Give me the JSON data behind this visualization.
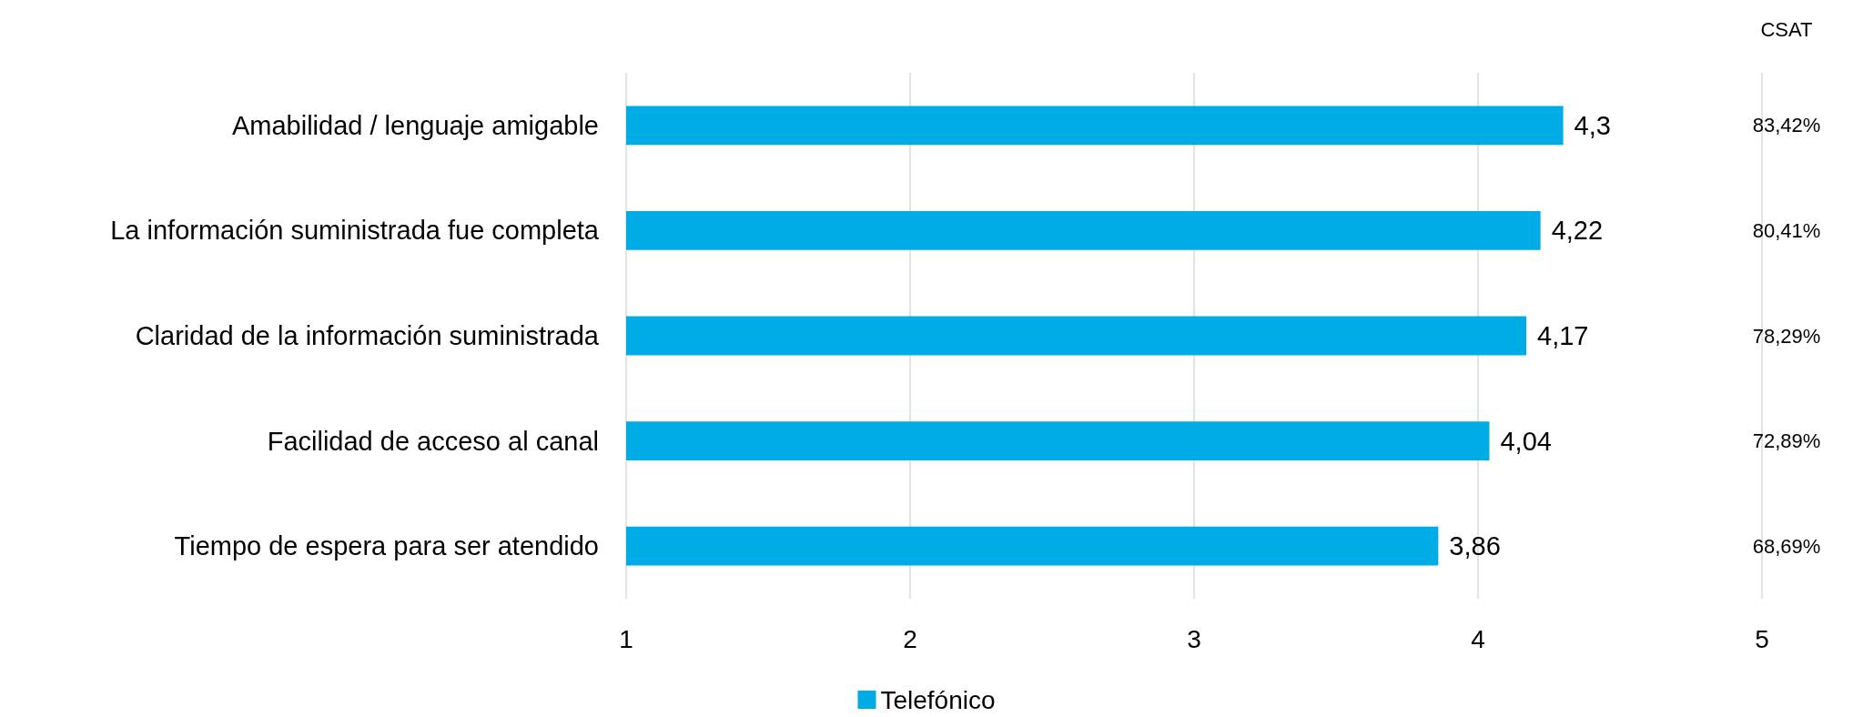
{
  "chart_data": {
    "type": "bar",
    "orientation": "horizontal",
    "categories": [
      "Amabilidad / lenguaje amigable",
      "La información suministrada fue completa",
      "Claridad de la información suministrada",
      "Facilidad de acceso al canal",
      "Tiempo de espera para ser atendido"
    ],
    "series": [
      {
        "name": "Telefónico",
        "color": "#00ace6",
        "values": [
          4.3,
          4.22,
          4.17,
          4.04,
          3.86
        ],
        "value_labels": [
          "4,3",
          "4,22",
          "4,17",
          "4,04",
          "3,86"
        ]
      }
    ],
    "xlim": [
      1,
      5
    ],
    "xticks": [
      1,
      2,
      3,
      4,
      5
    ],
    "grid": "x",
    "legend": "bottom",
    "annotations": [
      "CSAT",
      "83,42%",
      "80,41%",
      "78,29%",
      "72,89%",
      "68,69%"
    ]
  }
}
